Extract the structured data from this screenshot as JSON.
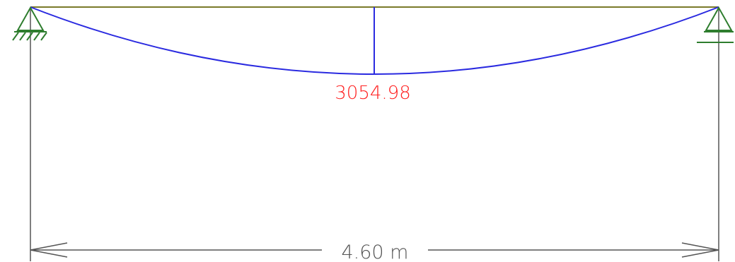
{
  "diagram": {
    "max_moment_value": "3054.98",
    "span_length_label": "4.60 m",
    "left_support": "pinned",
    "right_support": "roller",
    "colors": {
      "beam": "#7a7a2a",
      "moment_diagram": "#2a2ae0",
      "supports": "#2e7d2e",
      "value_label": "#ff2020",
      "dimension": "#555555"
    }
  }
}
